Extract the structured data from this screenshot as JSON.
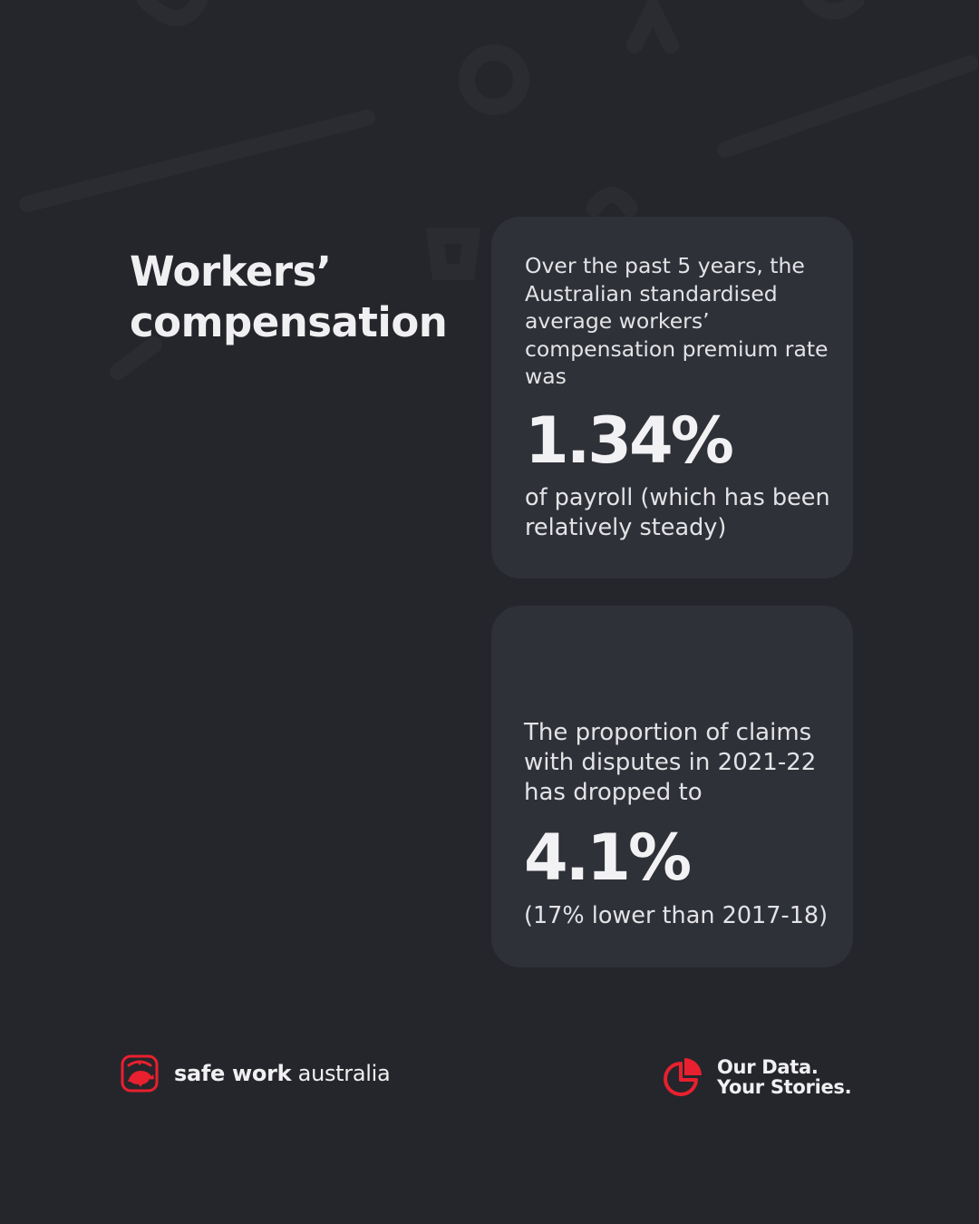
{
  "title": {
    "line1": "Workers’",
    "line2": "compensation"
  },
  "card1": {
    "lead": "Over the past 5 years, the Australian standardised average workers’ compensation premium rate was",
    "value": "1.34%",
    "tail": "of payroll (which has been relatively steady)"
  },
  "card2": {
    "lead": "The proportion of claims with disputes in 2021-22 has dropped to",
    "value": "4.1%",
    "tail": "(17% lower than 2017-18)"
  },
  "footer": {
    "brand_bold": "safe work",
    "brand_light": "australia",
    "tagline_line1": "Our Data.",
    "tagline_line2": "Your Stories."
  },
  "colors": {
    "background": "#25262b",
    "card": "#2f3138",
    "accent": "#e8202f",
    "text": "#f0f0f2"
  },
  "icons": {
    "brand_logo": "kangaroo-logo-icon",
    "tagline_icon": "pie-chart-icon"
  }
}
